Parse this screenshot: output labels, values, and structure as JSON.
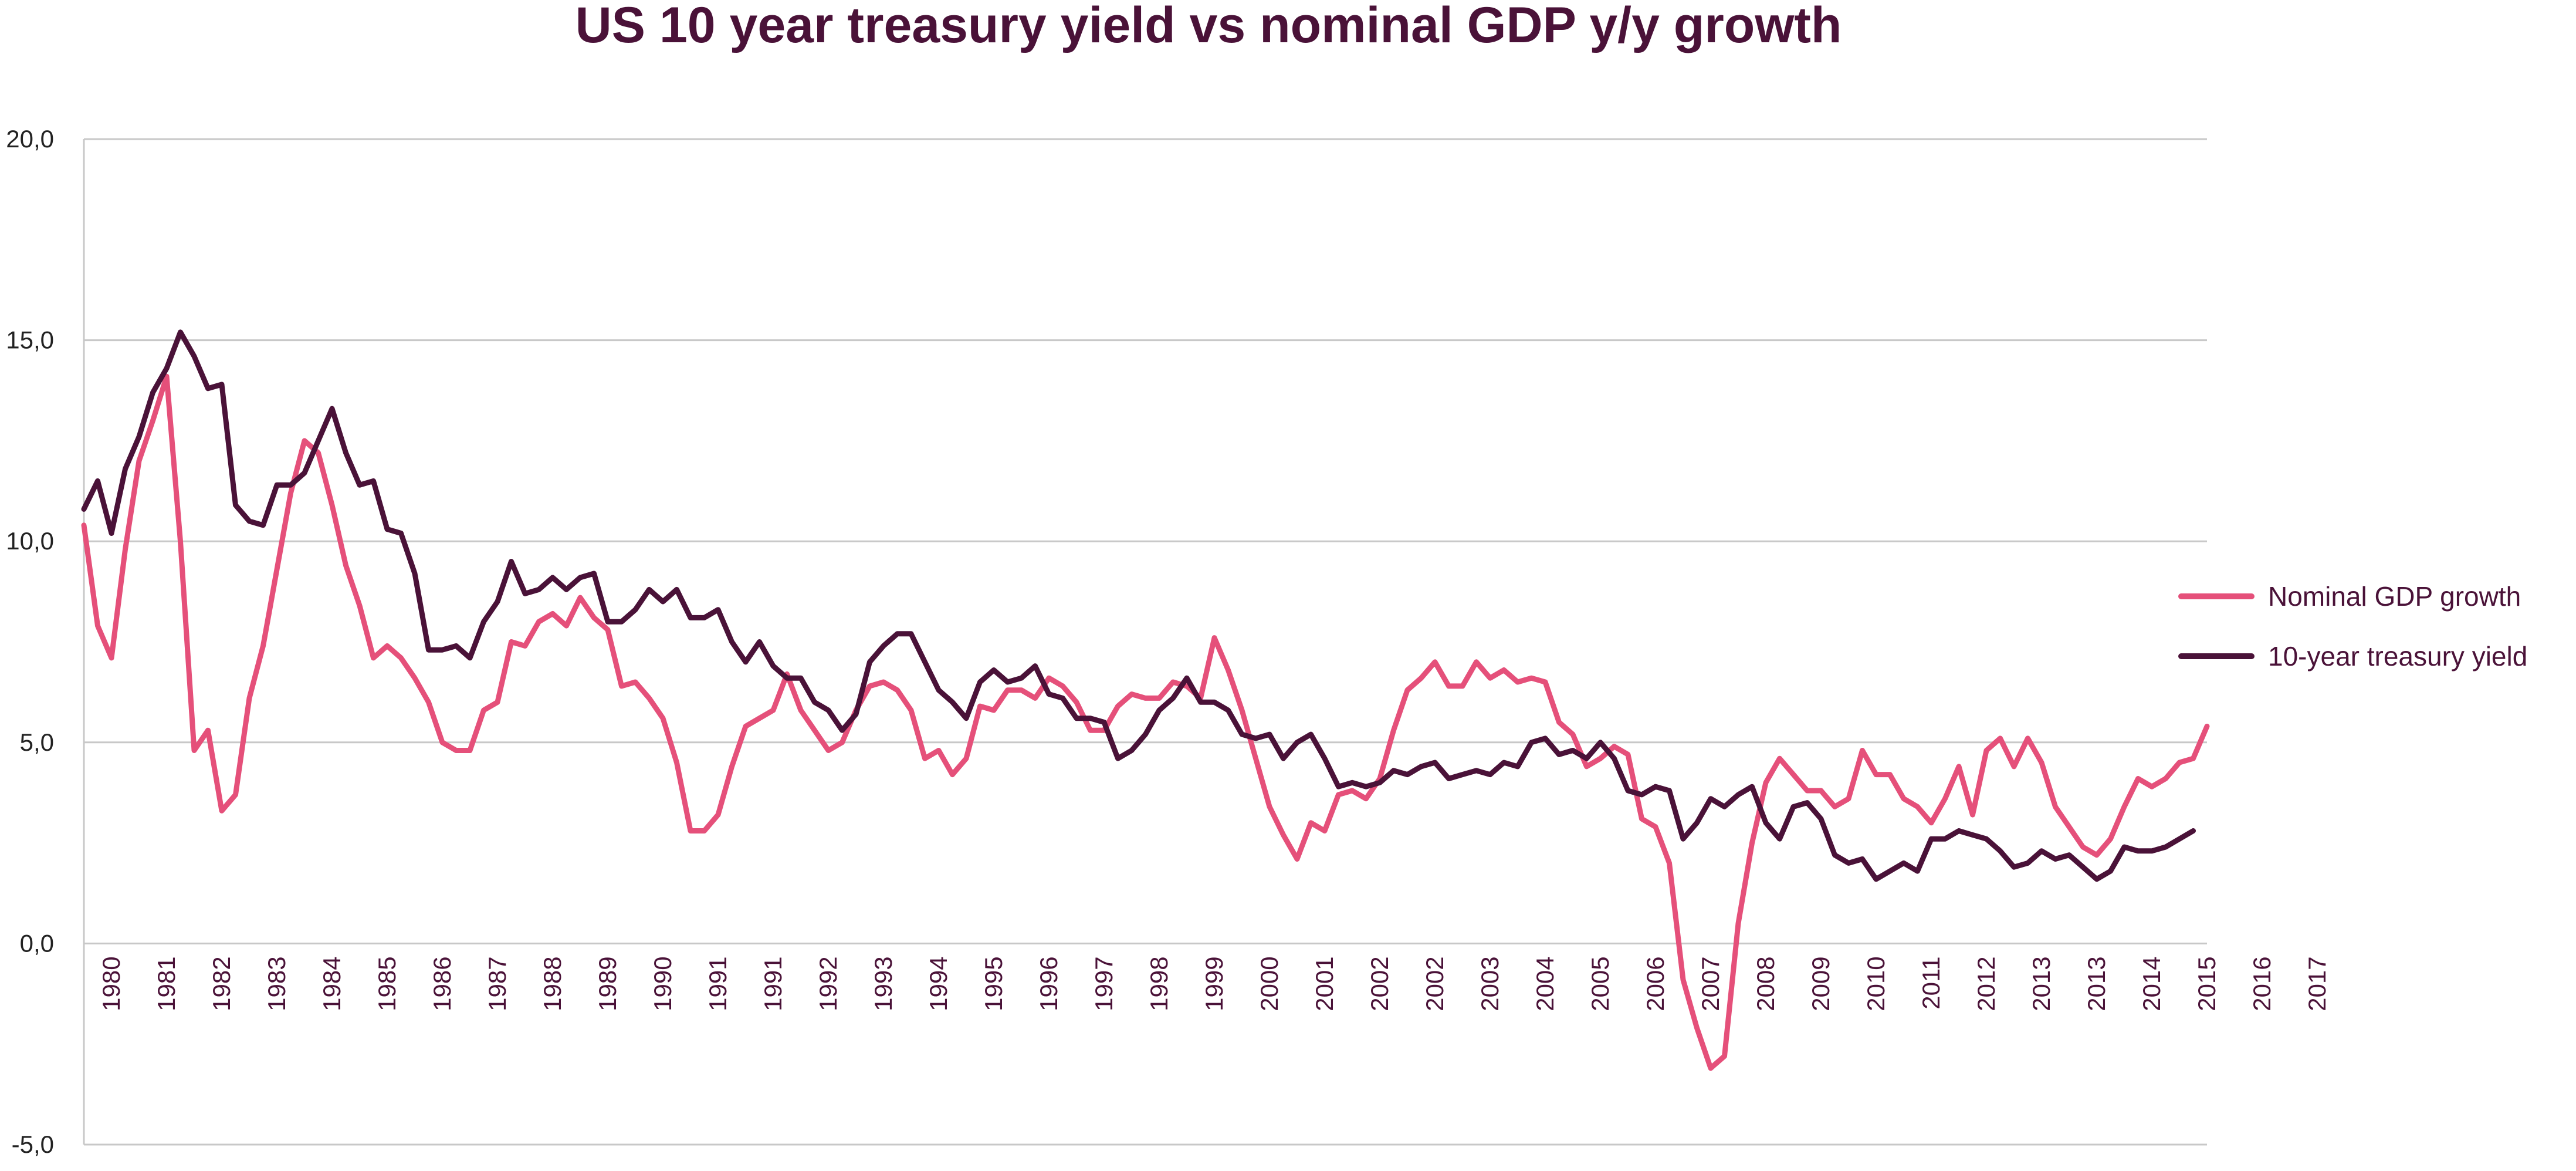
{
  "colors": {
    "title": "#4a1238",
    "axis_text": "#222222",
    "year_text": "#4a1238",
    "grid": "#c8c8c8",
    "gdp": "#e5507a",
    "treasury": "#4a1238"
  },
  "chart_data": {
    "type": "line",
    "title": "US 10 year treasury yield vs nominal GDP y/y growth",
    "xlabel": "",
    "ylabel": "",
    "ylim": [
      -5,
      20
    ],
    "y_ticks": [
      "-5,0",
      "0,0",
      "5,0",
      "10,0",
      "15,0",
      "20,0"
    ],
    "y_tick_values": [
      -5,
      0,
      5,
      10,
      15,
      20
    ],
    "grid": true,
    "legend_position": "right",
    "x_tick_labels": [
      "1980",
      "1981",
      "1982",
      "1983",
      "1984",
      "1985",
      "1986",
      "1987",
      "1988",
      "1989",
      "1990",
      "1991",
      "1991",
      "1992",
      "1993",
      "1994",
      "1995",
      "1996",
      "1997",
      "1998",
      "1999",
      "2000",
      "2001",
      "2002",
      "2002",
      "2003",
      "2004",
      "2005",
      "2006",
      "2007",
      "2008",
      "2009",
      "2010",
      "2011",
      "2012",
      "2013",
      "2013",
      "2014",
      "2015",
      "2016",
      "2017"
    ],
    "x_tick_quarter_index": [
      2,
      6,
      10,
      14,
      18,
      22,
      26,
      30,
      34,
      38,
      42,
      46,
      50,
      54,
      58,
      62,
      66,
      70,
      74,
      78,
      82,
      86,
      90,
      94,
      98,
      102,
      106,
      110,
      114,
      118,
      122,
      126,
      130,
      134,
      138,
      142,
      146,
      150,
      154,
      158,
      162
    ],
    "series": [
      {
        "name": "Nominal GDP growth",
        "color_key": "gdp",
        "values": [
          10.4,
          7.9,
          7.1,
          9.8,
          12.0,
          13.0,
          14.1,
          10.0,
          4.8,
          5.3,
          3.3,
          3.7,
          6.1,
          7.4,
          9.3,
          11.2,
          12.5,
          12.2,
          10.9,
          9.4,
          8.4,
          7.1,
          7.4,
          7.1,
          6.6,
          6.0,
          5.0,
          4.8,
          4.8,
          5.8,
          6.0,
          7.5,
          7.4,
          8.0,
          8.2,
          7.9,
          8.6,
          8.1,
          7.8,
          6.4,
          6.5,
          6.1,
          5.6,
          4.5,
          2.8,
          2.8,
          3.2,
          4.4,
          5.4,
          5.6,
          5.8,
          6.7,
          5.8,
          5.3,
          4.8,
          5.0,
          5.8,
          6.4,
          6.5,
          6.3,
          5.8,
          4.6,
          4.8,
          4.2,
          4.6,
          5.9,
          5.8,
          6.3,
          6.3,
          6.1,
          6.6,
          6.4,
          6.0,
          5.3,
          5.3,
          5.9,
          6.2,
          6.1,
          6.1,
          6.5,
          6.4,
          6.1,
          7.6,
          6.8,
          5.8,
          4.6,
          3.4,
          2.7,
          2.1,
          3.0,
          2.8,
          3.7,
          3.8,
          3.6,
          4.1,
          5.3,
          6.3,
          6.6,
          7.0,
          6.4,
          6.4,
          7.0,
          6.6,
          6.8,
          6.5,
          6.6,
          6.5,
          5.5,
          5.2,
          4.4,
          4.6,
          4.9,
          4.7,
          3.1,
          2.9,
          2.0,
          -0.9,
          -2.1,
          -3.1,
          -2.8,
          0.5,
          2.5,
          4.0,
          4.6,
          4.2,
          3.8,
          3.8,
          3.4,
          3.6,
          4.8,
          4.2,
          4.2,
          3.6,
          3.4,
          3.0,
          3.6,
          4.4,
          3.2,
          4.8,
          5.1,
          4.4,
          5.1,
          4.5,
          3.4,
          2.9,
          2.4,
          2.2,
          2.6,
          3.4,
          4.1,
          3.9,
          4.1,
          4.5,
          4.6,
          5.4
        ]
      },
      {
        "name": "10-year treasury yield",
        "color_key": "treasury",
        "values": [
          10.8,
          11.5,
          10.2,
          11.8,
          12.6,
          13.7,
          14.3,
          15.2,
          14.6,
          13.8,
          13.9,
          10.9,
          10.5,
          10.4,
          11.4,
          11.4,
          11.7,
          12.5,
          13.3,
          12.2,
          11.4,
          11.5,
          10.3,
          10.2,
          9.2,
          7.3,
          7.3,
          7.4,
          7.1,
          8.0,
          8.5,
          9.5,
          8.7,
          8.8,
          9.1,
          8.8,
          9.1,
          9.2,
          8.0,
          8.0,
          8.3,
          8.8,
          8.5,
          8.8,
          8.1,
          8.1,
          8.3,
          7.5,
          7.0,
          7.5,
          6.9,
          6.6,
          6.6,
          6.0,
          5.8,
          5.3,
          5.7,
          7.0,
          7.4,
          7.7,
          7.7,
          7.0,
          6.3,
          6.0,
          5.6,
          6.5,
          6.8,
          6.5,
          6.6,
          6.9,
          6.2,
          6.1,
          5.6,
          5.6,
          5.5,
          4.6,
          4.8,
          5.2,
          5.8,
          6.1,
          6.6,
          6.0,
          6.0,
          5.8,
          5.2,
          5.1,
          5.2,
          4.6,
          5.0,
          5.2,
          4.6,
          3.9,
          4.0,
          3.9,
          4.0,
          4.3,
          4.2,
          4.4,
          4.5,
          4.1,
          4.2,
          4.3,
          4.2,
          4.5,
          4.4,
          5.0,
          5.1,
          4.7,
          4.8,
          4.6,
          5.0,
          4.6,
          3.8,
          3.7,
          3.9,
          3.8,
          2.6,
          3.0,
          3.6,
          3.4,
          3.7,
          3.9,
          3.0,
          2.6,
          3.4,
          3.5,
          3.1,
          2.2,
          2.0,
          2.1,
          1.6,
          1.8,
          2.0,
          1.8,
          2.6,
          2.6,
          2.8,
          2.7,
          2.6,
          2.3,
          1.9,
          2.0,
          2.3,
          2.1,
          2.2,
          1.9,
          1.6,
          1.8,
          2.4,
          2.3,
          2.3,
          2.4,
          2.6,
          2.8
        ]
      }
    ]
  }
}
